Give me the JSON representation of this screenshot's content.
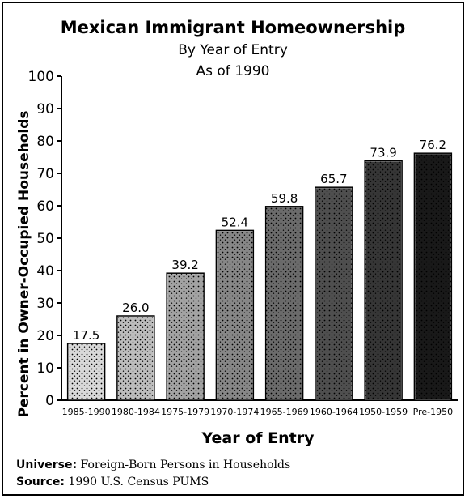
{
  "chart_data": {
    "type": "bar",
    "title": "Mexican Immigrant Homeownership",
    "subtitle_lines": [
      "By Year of Entry",
      "As of 1990"
    ],
    "xlabel": "Year of Entry",
    "ylabel": "Percent in Owner-Occupied Households",
    "ylim": [
      0,
      100
    ],
    "yticks": [
      0,
      10,
      20,
      30,
      40,
      50,
      60,
      70,
      80,
      90,
      100
    ],
    "categories": [
      "1985-1990",
      "1980-1984",
      "1975-1979",
      "1970-1974",
      "1965-1969",
      "1960-1964",
      "1950-1959",
      "Pre-1950"
    ],
    "values": [
      17.5,
      26.0,
      39.2,
      52.4,
      59.8,
      65.7,
      73.9,
      76.2
    ],
    "value_labels": [
      "17.5",
      "26.0",
      "39.2",
      "52.4",
      "59.8",
      "65.7",
      "73.9",
      "76.2"
    ],
    "grid": false,
    "legend": "none"
  },
  "footer": {
    "universe_label": "Universe:",
    "universe_text": " Foreign-Born Persons in Households",
    "source_label": "Source:",
    "source_text": " 1990 U.S. Census PUMS"
  }
}
